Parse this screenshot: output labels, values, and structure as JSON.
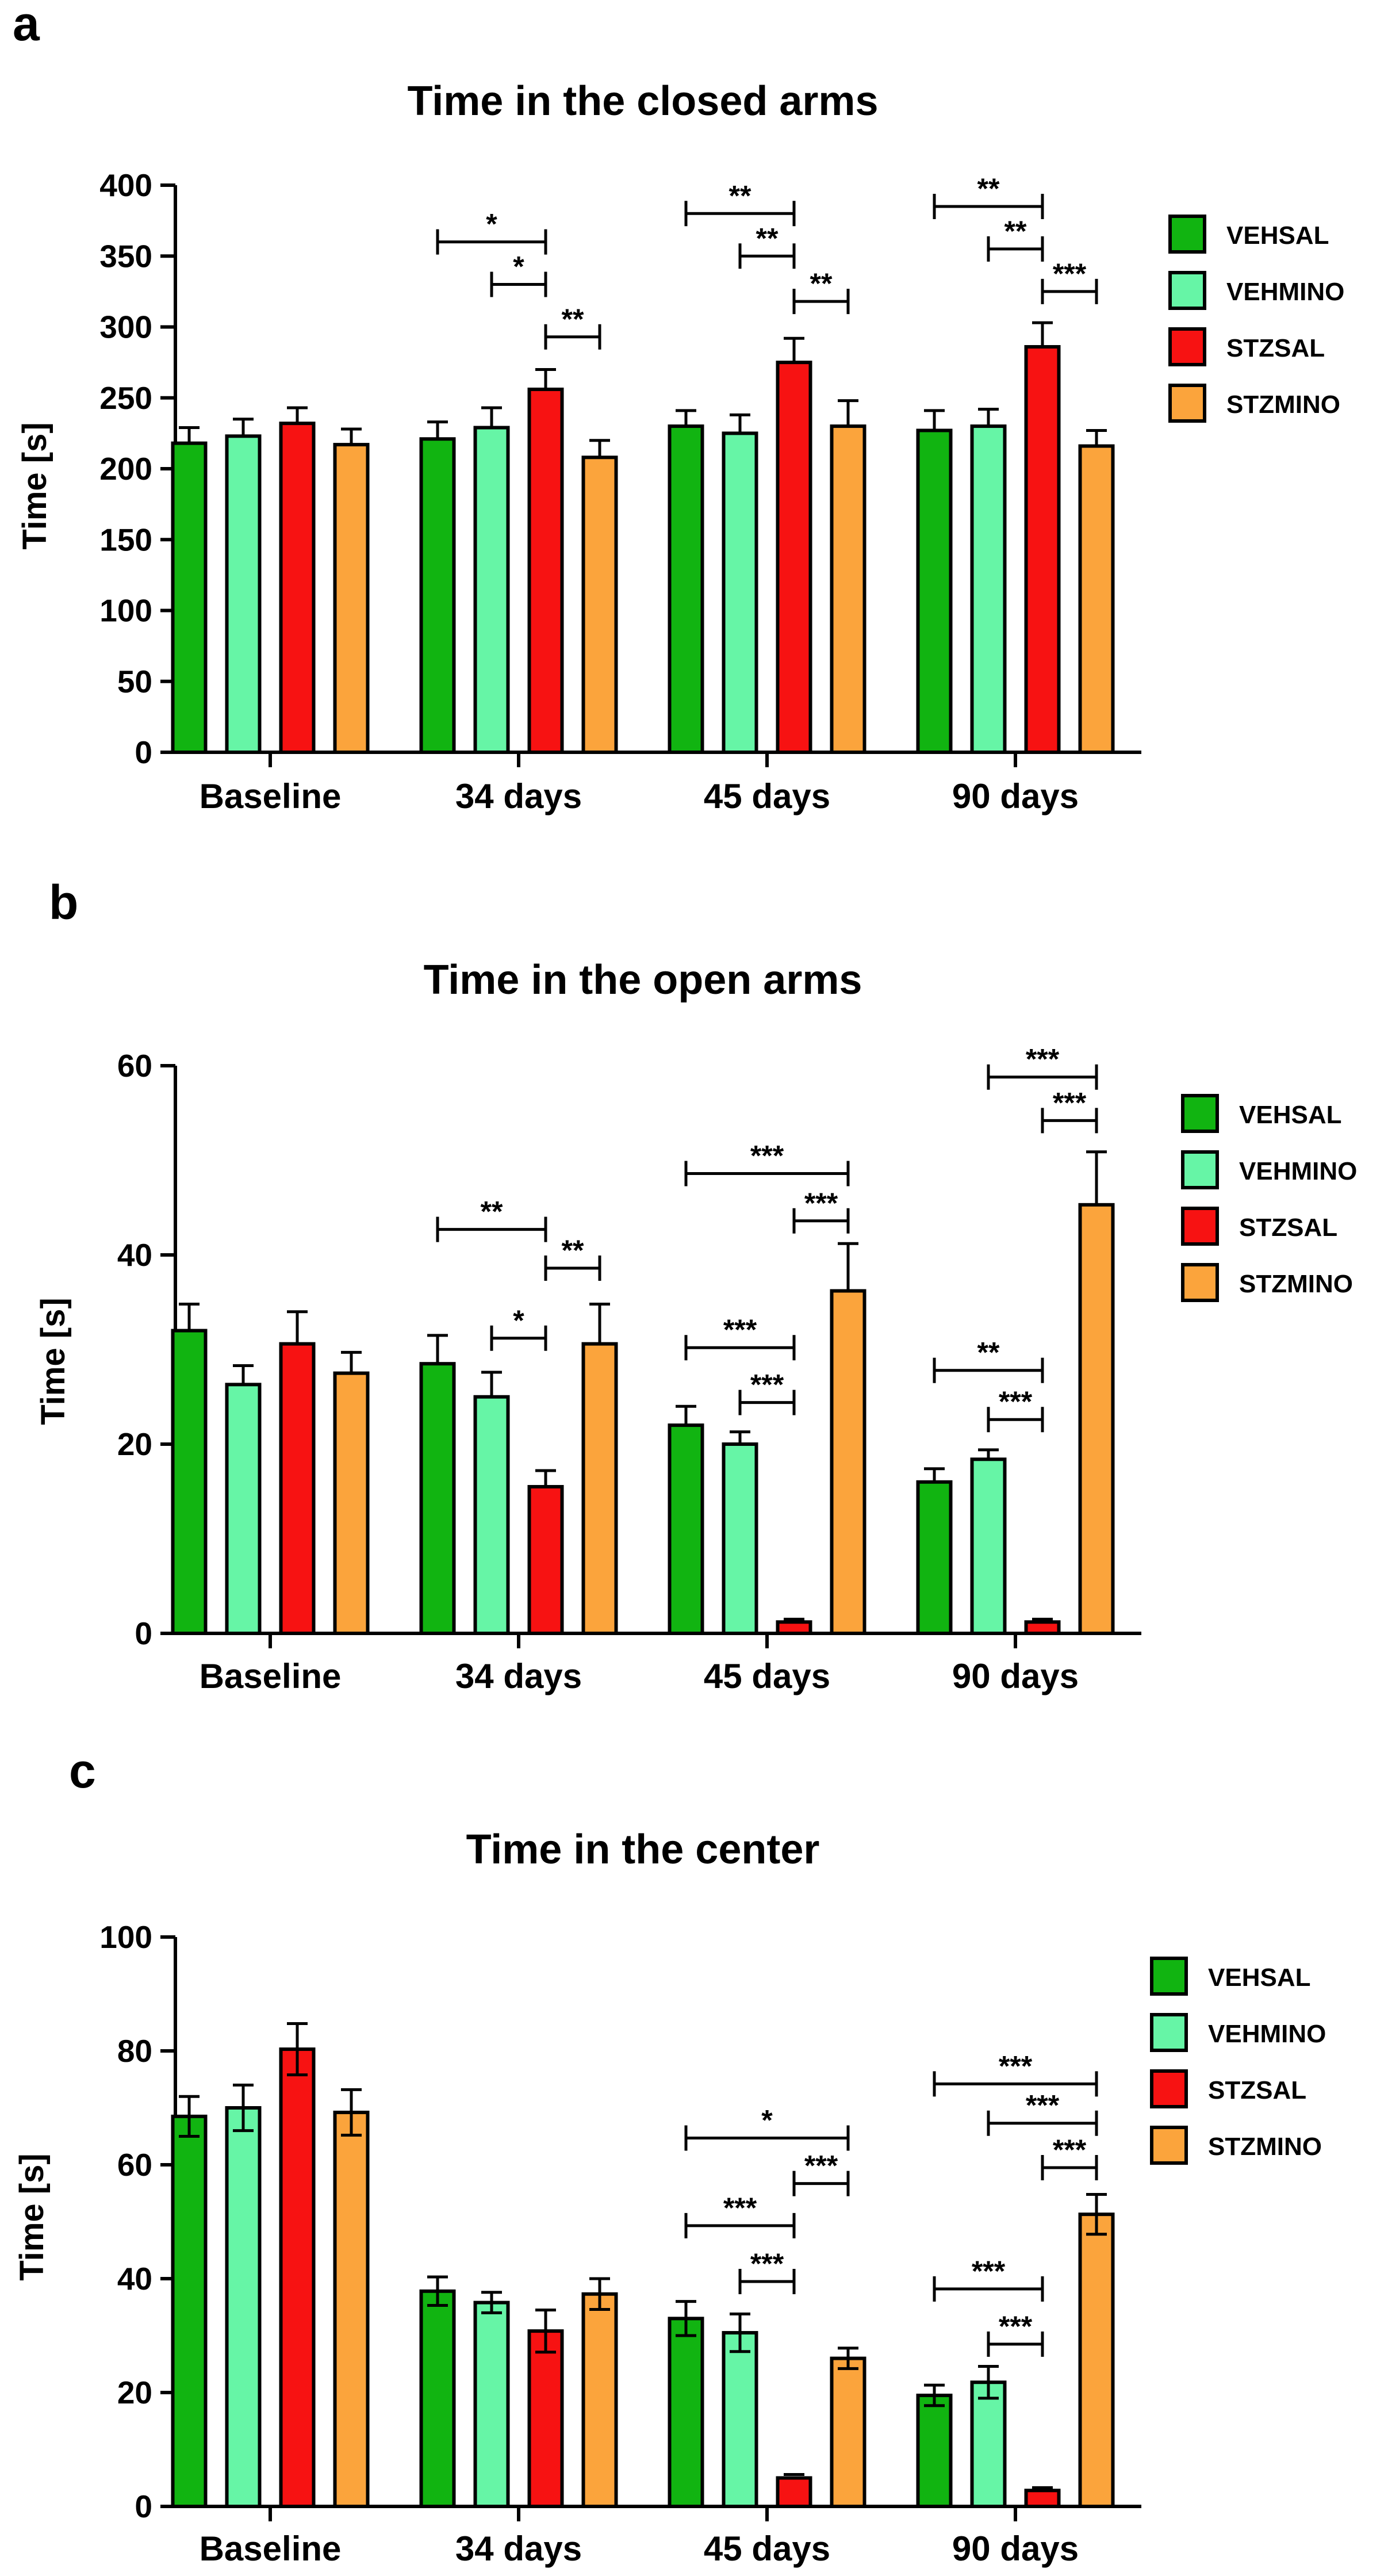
{
  "colors": {
    "VEHSAL": "#11b411",
    "VEHMINO": "#66f5a6",
    "STZSAL": "#f71212",
    "STZMINO": "#fba43c"
  },
  "chart_data": [
    {
      "panel": "a",
      "type": "bar",
      "title": "Time in the closed arms",
      "ylabel": "Time [s]",
      "xlabel": "",
      "ylim": [
        0,
        400
      ],
      "yticks": [
        "0",
        "50",
        "100",
        "150",
        "200",
        "250",
        "300",
        "350",
        "400"
      ],
      "categories": [
        "Baseline",
        "34 days",
        "45 days",
        "90 days"
      ],
      "legend": [
        "VEHSAL",
        "VEHMINO",
        "STZSAL",
        "STZMINO"
      ],
      "legend_position": "right",
      "series": [
        {
          "name": "VEHSAL",
          "values": [
            218,
            221,
            230,
            227
          ],
          "errors": [
            11,
            12,
            11,
            14
          ]
        },
        {
          "name": "VEHMINO",
          "values": [
            223,
            229,
            225,
            230
          ],
          "errors": [
            12,
            14,
            13,
            12
          ]
        },
        {
          "name": "STZSAL",
          "values": [
            232,
            256,
            275,
            286
          ],
          "errors": [
            11,
            14,
            17,
            17
          ]
        },
        {
          "name": "STZMINO",
          "values": [
            217,
            208,
            230,
            216
          ],
          "errors": [
            11,
            12,
            18,
            11
          ]
        }
      ],
      "annotations": [
        {
          "category": 1,
          "from": 0,
          "to": 2,
          "label": "*",
          "level": 360
        },
        {
          "category": 1,
          "from": 1,
          "to": 2,
          "label": "*",
          "level": 330
        },
        {
          "category": 1,
          "from": 2,
          "to": 3,
          "label": "**",
          "level": 293
        },
        {
          "category": 2,
          "from": 0,
          "to": 2,
          "label": "**",
          "level": 380
        },
        {
          "category": 2,
          "from": 1,
          "to": 2,
          "label": "**",
          "level": 350
        },
        {
          "category": 2,
          "from": 2,
          "to": 3,
          "label": "**",
          "level": 318
        },
        {
          "category": 3,
          "from": 0,
          "to": 2,
          "label": "**",
          "level": 385
        },
        {
          "category": 3,
          "from": 1,
          "to": 2,
          "label": "**",
          "level": 355
        },
        {
          "category": 3,
          "from": 2,
          "to": 3,
          "label": "***",
          "level": 325
        }
      ]
    },
    {
      "panel": "b",
      "type": "bar",
      "title": "Time in the open arms",
      "ylabel": "Time [s]",
      "xlabel": "",
      "ylim": [
        0,
        60
      ],
      "yticks": [
        "0",
        "20",
        "40",
        "60"
      ],
      "categories": [
        "Baseline",
        "34 days",
        "45 days",
        "90 days"
      ],
      "legend": [
        "VEHSAL",
        "VEHMINO",
        "STZSAL",
        "STZMINO"
      ],
      "legend_position": "right",
      "series": [
        {
          "name": "VEHSAL",
          "values": [
            32,
            28.5,
            22,
            16
          ],
          "errors": [
            2.8,
            3,
            2,
            1.4
          ]
        },
        {
          "name": "VEHMINO",
          "values": [
            26.3,
            25,
            20,
            18.4
          ],
          "errors": [
            2,
            2.6,
            1.3,
            1
          ]
        },
        {
          "name": "STZSAL",
          "values": [
            30.6,
            15.5,
            1.2,
            1.2
          ],
          "errors": [
            3.4,
            1.7,
            0.3,
            0.3
          ]
        },
        {
          "name": "STZMINO",
          "values": [
            27.5,
            30.6,
            36.2,
            45.3
          ],
          "errors": [
            2.2,
            4.2,
            5,
            5.6
          ]
        }
      ],
      "annotations": [
        {
          "category": 1,
          "from": 0,
          "to": 2,
          "label": "**",
          "level": 42.7
        },
        {
          "category": 1,
          "from": 1,
          "to": 2,
          "label": "*",
          "level": 31.2
        },
        {
          "category": 1,
          "from": 2,
          "to": 3,
          "label": "**",
          "level": 38.6
        },
        {
          "category": 2,
          "from": 0,
          "to": 3,
          "label": "***",
          "level": 48.6
        },
        {
          "category": 2,
          "from": 2,
          "to": 3,
          "label": "***",
          "level": 43.6
        },
        {
          "category": 2,
          "from": 0,
          "to": 2,
          "label": "***",
          "level": 30.2
        },
        {
          "category": 2,
          "from": 1,
          "to": 2,
          "label": "***",
          "level": 24.4
        },
        {
          "category": 3,
          "from": 1,
          "to": 3,
          "label": "***",
          "level": 58.8
        },
        {
          "category": 3,
          "from": 2,
          "to": 3,
          "label": "***",
          "level": 54.2
        },
        {
          "category": 3,
          "from": 0,
          "to": 2,
          "label": "**",
          "level": 27.8
        },
        {
          "category": 3,
          "from": 1,
          "to": 2,
          "label": "***",
          "level": 22.6
        }
      ]
    },
    {
      "panel": "c",
      "type": "bar",
      "title": "Time in the center",
      "ylabel": "Time [s]",
      "xlabel": "",
      "ylim": [
        0,
        100
      ],
      "yticks": [
        "0",
        "20",
        "40",
        "60",
        "80",
        "100"
      ],
      "categories": [
        "Baseline",
        "34 days",
        "45 days",
        "90 days"
      ],
      "legend": [
        "VEHSAL",
        "VEHMINO",
        "STZSAL",
        "STZMINO"
      ],
      "legend_position": "right",
      "series": [
        {
          "name": "VEHSAL",
          "values": [
            68.5,
            37.8,
            33,
            19.5
          ],
          "errors": [
            3.5,
            2.5,
            3,
            1.8
          ]
        },
        {
          "name": "VEHMINO",
          "values": [
            70,
            35.8,
            30.5,
            21.8
          ],
          "errors": [
            4,
            1.8,
            3.3,
            2.8
          ]
        },
        {
          "name": "STZSAL",
          "values": [
            80.3,
            30.8,
            5,
            2.8
          ],
          "errors": [
            4.5,
            3.7,
            0.6,
            0.5
          ]
        },
        {
          "name": "STZMINO",
          "values": [
            69.2,
            37.3,
            26,
            51.3
          ],
          "errors": [
            4,
            2.7,
            1.8,
            3.5
          ]
        }
      ],
      "annotations": [
        {
          "category": 2,
          "from": 0,
          "to": 3,
          "label": "*",
          "level": 64.7
        },
        {
          "category": 2,
          "from": 2,
          "to": 3,
          "label": "***",
          "level": 56.7
        },
        {
          "category": 2,
          "from": 0,
          "to": 2,
          "label": "***",
          "level": 49.3
        },
        {
          "category": 2,
          "from": 1,
          "to": 2,
          "label": "***",
          "level": 39.5
        },
        {
          "category": 3,
          "from": 0,
          "to": 3,
          "label": "***",
          "level": 74.2
        },
        {
          "category": 3,
          "from": 1,
          "to": 3,
          "label": "***",
          "level": 67.3
        },
        {
          "category": 3,
          "from": 2,
          "to": 3,
          "label": "***",
          "level": 59.5
        },
        {
          "category": 3,
          "from": 0,
          "to": 2,
          "label": "***",
          "level": 38.2
        },
        {
          "category": 3,
          "from": 1,
          "to": 2,
          "label": "***",
          "level": 28.5
        }
      ]
    }
  ]
}
